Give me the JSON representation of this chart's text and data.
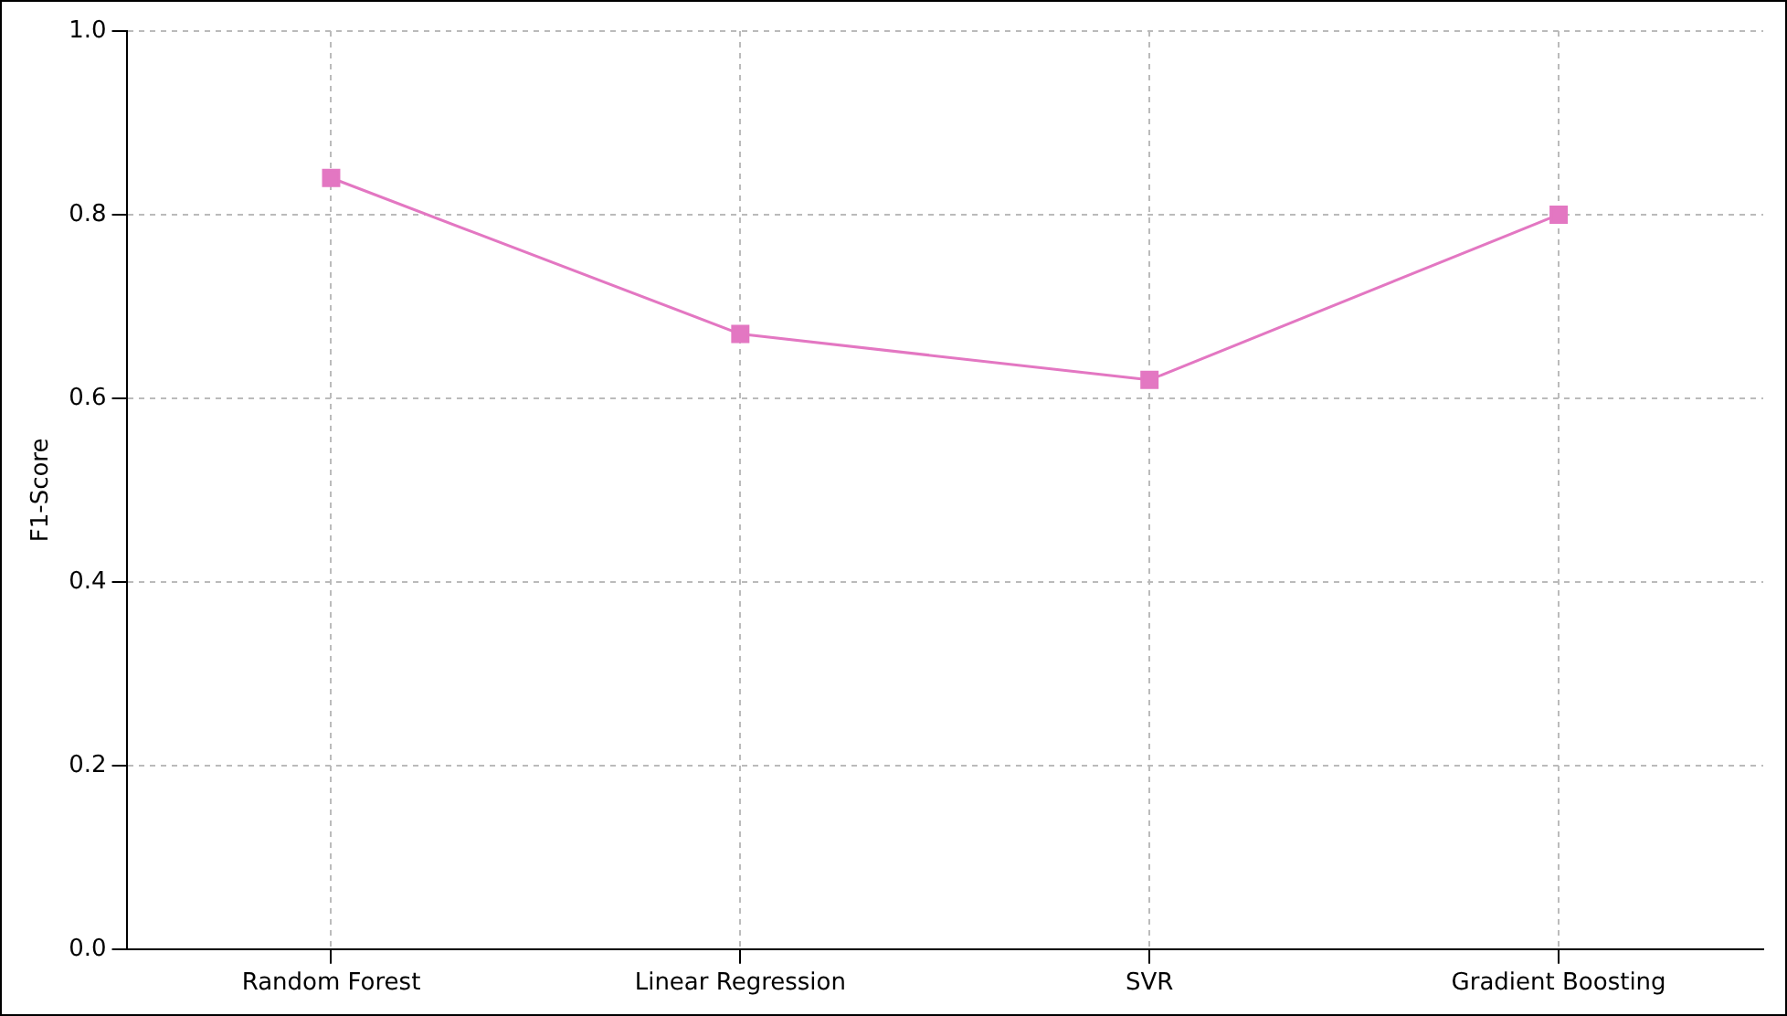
{
  "chart_data": {
    "type": "line",
    "ylabel": "F1-Score",
    "categories": [
      "Random Forest",
      "Linear Regression",
      "SVR",
      "Gradient Boosting"
    ],
    "series": [
      {
        "color": "#e377c2",
        "values": [
          0.84,
          0.67,
          0.62,
          0.8
        ]
      }
    ],
    "ylim": [
      0,
      1
    ],
    "yticks": [
      {
        "value": 0,
        "label": "0.0"
      },
      {
        "value": 0.2,
        "label": "0.2"
      },
      {
        "value": 0.4,
        "label": "0.4"
      },
      {
        "value": 0.6,
        "label": "0.6"
      },
      {
        "value": 0.8,
        "label": "0.8"
      },
      {
        "value": 1,
        "label": "1.0"
      }
    ],
    "grid": true,
    "marker": "square",
    "line_style": "solid",
    "legend": false
  }
}
